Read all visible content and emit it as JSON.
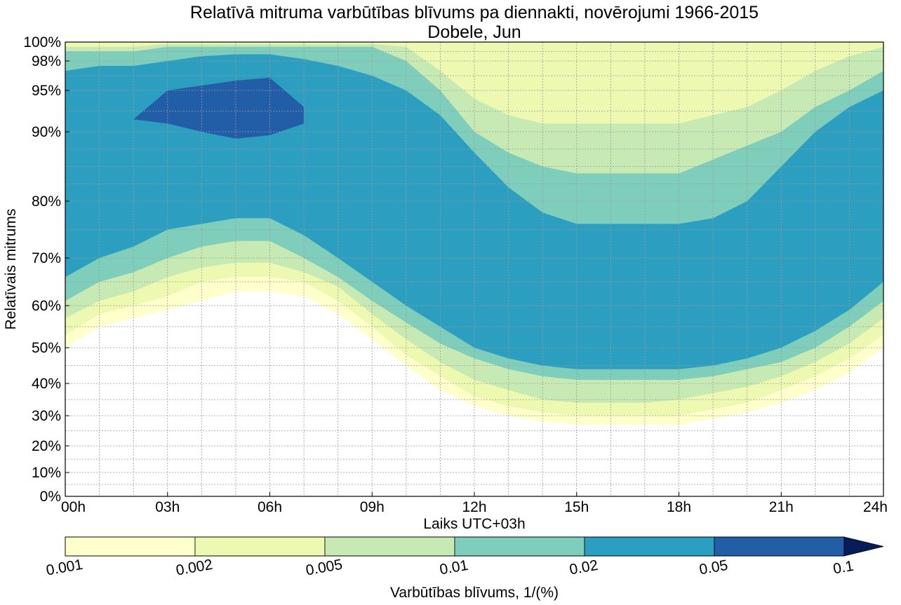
{
  "chart_data": {
    "type": "contour",
    "title": "Relatīvā mitruma varbūtības blīvums pa diennakti, novērojumi 1966-2015",
    "subtitle": "Dobele, Jun",
    "xlabel": "Laiks UTC+03h",
    "ylabel": "Relatīvais mitrums",
    "x_ticks": [
      "00h",
      "03h",
      "06h",
      "09h",
      "12h",
      "15h",
      "18h",
      "21h",
      "24h"
    ],
    "y_ticks": [
      {
        "value": 0,
        "label": "0%"
      },
      {
        "value": 10,
        "label": "10%"
      },
      {
        "value": 20,
        "label": "20%"
      },
      {
        "value": 30,
        "label": "30%"
      },
      {
        "value": 40,
        "label": "40%"
      },
      {
        "value": 50,
        "label": "50%"
      },
      {
        "value": 60,
        "label": "60%"
      },
      {
        "value": 70,
        "label": "70%"
      },
      {
        "value": 80,
        "label": "80%"
      },
      {
        "value": 90,
        "label": "90%"
      },
      {
        "value": 95,
        "label": "95%"
      },
      {
        "value": 98,
        "label": "98%"
      },
      {
        "value": 100,
        "label": "100%"
      }
    ],
    "y_minor_gridlines": [
      5,
      15,
      25,
      35,
      45,
      55,
      65,
      75,
      82.5,
      85,
      87.5,
      92.5,
      96.5,
      99
    ],
    "xlim": [
      0,
      24
    ],
    "ylim": [
      0,
      100
    ],
    "grid": true,
    "x_hours": [
      0,
      1,
      2,
      3,
      4,
      5,
      6,
      7,
      8,
      9,
      10,
      11,
      12,
      13,
      14,
      15,
      16,
      17,
      18,
      19,
      20,
      21,
      22,
      23,
      24
    ],
    "levels": [
      {
        "label": "0.001",
        "color": "#ffffcc",
        "lower": [
          50,
          55,
          57,
          59,
          61,
          63,
          63,
          62,
          58,
          52,
          45,
          38,
          33,
          30,
          28,
          27,
          27,
          27,
          27,
          29,
          31,
          34,
          38,
          43,
          50
        ],
        "upper": [
          100,
          100,
          100,
          100,
          100,
          100,
          100,
          100,
          100,
          100,
          100,
          100,
          100,
          100,
          100,
          100,
          100,
          100,
          100,
          100,
          100,
          100,
          100,
          100,
          100
        ]
      },
      {
        "label": "0.002",
        "color": "#edf8b1",
        "lower": [
          53,
          58,
          60,
          62,
          65,
          66,
          66,
          65,
          61,
          55,
          48,
          42,
          36,
          33,
          31,
          30,
          30,
          30,
          30,
          32,
          34,
          38,
          42,
          47,
          53
        ],
        "upper": [
          100,
          100,
          100,
          100,
          100,
          100,
          100,
          100,
          100,
          100,
          100,
          100,
          100,
          100,
          100,
          100,
          100,
          100,
          100,
          100,
          100,
          100,
          100,
          100,
          100
        ]
      },
      {
        "label": "0.005",
        "color": "#c7e9b4",
        "lower": [
          57,
          61,
          63,
          66,
          68,
          69,
          69,
          67,
          64,
          58,
          52,
          46,
          41,
          38,
          35,
          34,
          34,
          34,
          35,
          37,
          39,
          42,
          46,
          51,
          57
        ],
        "upper": [
          99.5,
          99.5,
          99.5,
          99.8,
          99.8,
          99.8,
          99.8,
          99.8,
          99.8,
          99.8,
          99.5,
          97,
          94,
          92,
          91,
          91,
          91,
          91,
          91,
          92,
          93,
          95,
          97,
          98.5,
          99.5
        ]
      },
      {
        "label": "0.01",
        "color": "#7fcdbb",
        "lower": [
          61,
          65,
          67,
          70,
          72,
          73,
          73,
          70,
          66,
          61,
          56,
          51,
          47,
          44,
          42,
          41,
          41,
          41,
          41,
          42,
          44,
          46,
          50,
          55,
          61
        ],
        "upper": [
          99,
          99,
          99,
          99.5,
          99.5,
          99.5,
          99.5,
          99.5,
          99.5,
          99.5,
          98,
          95,
          90,
          87,
          85,
          84,
          84,
          84,
          84,
          86,
          88,
          90,
          93,
          95,
          97
        ]
      },
      {
        "label": "0.02",
        "color": "#2c9fc0",
        "lower": [
          66,
          70,
          72,
          75,
          76,
          77,
          77,
          74,
          70,
          65,
          60,
          55,
          50,
          47,
          45,
          44,
          44,
          44,
          44,
          45,
          47,
          50,
          54,
          59,
          65
        ],
        "upper": [
          97,
          97.5,
          97.5,
          98,
          98.5,
          98.7,
          98.7,
          98.2,
          97.5,
          96.5,
          95,
          92,
          87,
          82,
          78,
          76,
          76,
          76,
          76,
          77,
          80,
          85,
          90,
          93,
          95
        ]
      },
      {
        "label": "0.05",
        "color": "#225ea8",
        "lower": [
          null,
          null,
          91.5,
          91,
          90,
          89,
          89.5,
          91,
          null,
          null,
          null,
          null,
          null,
          null,
          null,
          null,
          null,
          null,
          null,
          null,
          null,
          null,
          null,
          null,
          null
        ],
        "upper": [
          null,
          null,
          91.5,
          95,
          95.5,
          96,
          96.3,
          93,
          null,
          null,
          null,
          null,
          null,
          null,
          null,
          null,
          null,
          null,
          null,
          null,
          null,
          null,
          null,
          null,
          null
        ]
      }
    ],
    "colorbar": {
      "label": "Varbūtības blīvums, 1/(%)",
      "ticks": [
        "0.001",
        "0.002",
        "0.005",
        "0.01",
        "0.02",
        "0.05",
        "0.1"
      ],
      "colors": [
        "#ffffcc",
        "#edf8b1",
        "#c7e9b4",
        "#7fcdbb",
        "#2c9fc0",
        "#225ea8"
      ],
      "extend_color": "#081d58"
    }
  }
}
